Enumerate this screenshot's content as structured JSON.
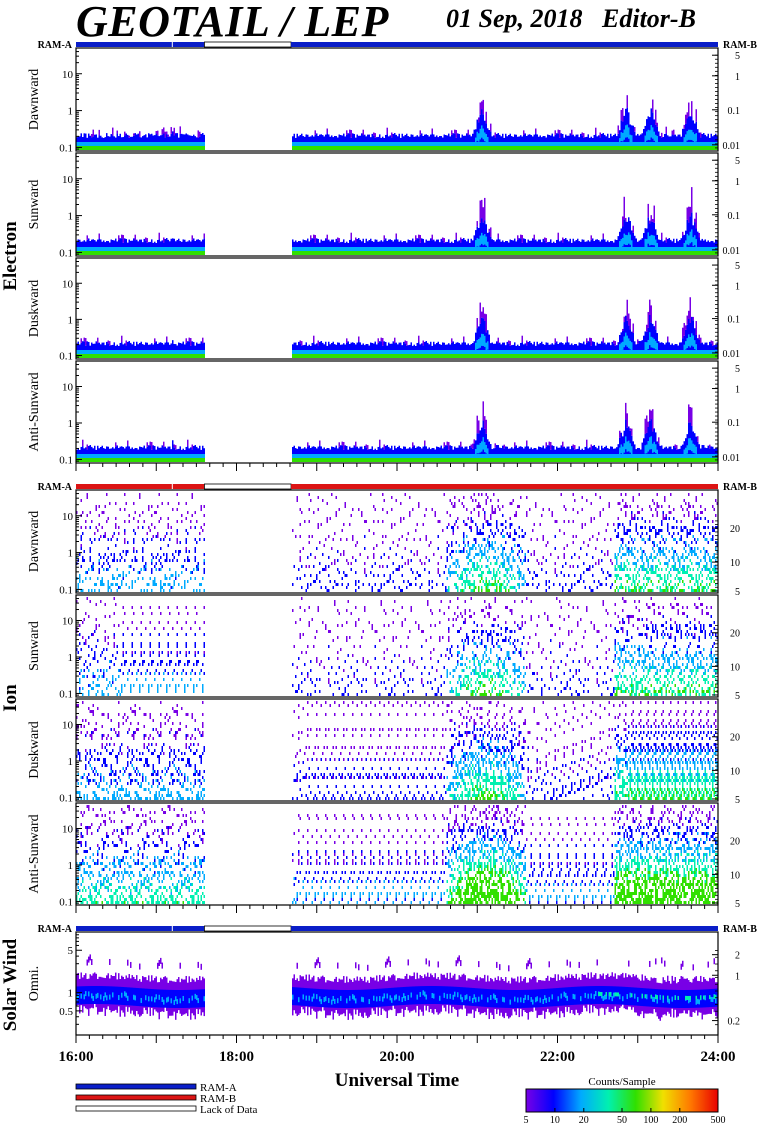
{
  "header": {
    "title": "GEOTAIL / LEP",
    "date": "01 Sep, 2018",
    "editor": "Editor-B"
  },
  "ram_labels": {
    "a": "RAM-A",
    "b": "RAM-B"
  },
  "groups": [
    {
      "label": "Electron",
      "panels": [
        "Dawnward",
        "Sunward",
        "Duskward",
        "Anti-Sunward"
      ],
      "bar_color": "#0a1ec8"
    },
    {
      "label": "Ion",
      "panels": [
        "Dawnward",
        "Sunward",
        "Duskward",
        "Anti-Sunward"
      ],
      "bar_color": "#dc1414"
    },
    {
      "label": "Solar Wind",
      "panels": [
        "Omni."
      ],
      "bar_color": "#0a1ec8"
    }
  ],
  "chart_data": {
    "type": "heatmap",
    "xlabel": "Universal Time",
    "x_ticks": [
      "16:00",
      "18:00",
      "20:00",
      "22:00",
      "24:00"
    ],
    "x_range_hours": [
      16,
      24
    ],
    "data_gaps": [
      {
        "start": 17.6,
        "end": 18.68
      }
    ],
    "left_axis": {
      "scale": "log",
      "electron_ion_range": [
        0.08,
        50
      ],
      "electron_ion_tick_labels": [
        "0.1",
        "1",
        "10"
      ],
      "solar_wind_range": [
        0.2,
        10
      ],
      "solar_wind_tick_labels": [
        "0.5",
        "1",
        "5"
      ]
    },
    "right_axis": {
      "electron_tick_labels": [
        "0.01",
        "0.1",
        "1",
        "5"
      ],
      "ion_tick_labels": [
        "5",
        "10",
        "20"
      ],
      "solar_wind_tick_labels": [
        "0.2",
        "1",
        "2"
      ]
    },
    "electron_activity_hours": [
      21.05,
      22.85,
      23.15,
      23.65
    ],
    "colorbar": {
      "title": "Counts/Sample",
      "tick_labels": [
        "5",
        "10",
        "20",
        "50",
        "100",
        "200",
        "500"
      ],
      "colors": [
        "#7800e6",
        "#0000ff",
        "#00aaff",
        "#00f0b0",
        "#30e000",
        "#f0e000",
        "#ff7800",
        "#e80000"
      ]
    }
  },
  "legend": {
    "items": [
      {
        "label": "RAM-A",
        "color": "#0a1ec8"
      },
      {
        "label": "RAM-B",
        "color": "#dc1414"
      },
      {
        "label": "Lack of Data",
        "color": "#ffffff"
      }
    ]
  }
}
